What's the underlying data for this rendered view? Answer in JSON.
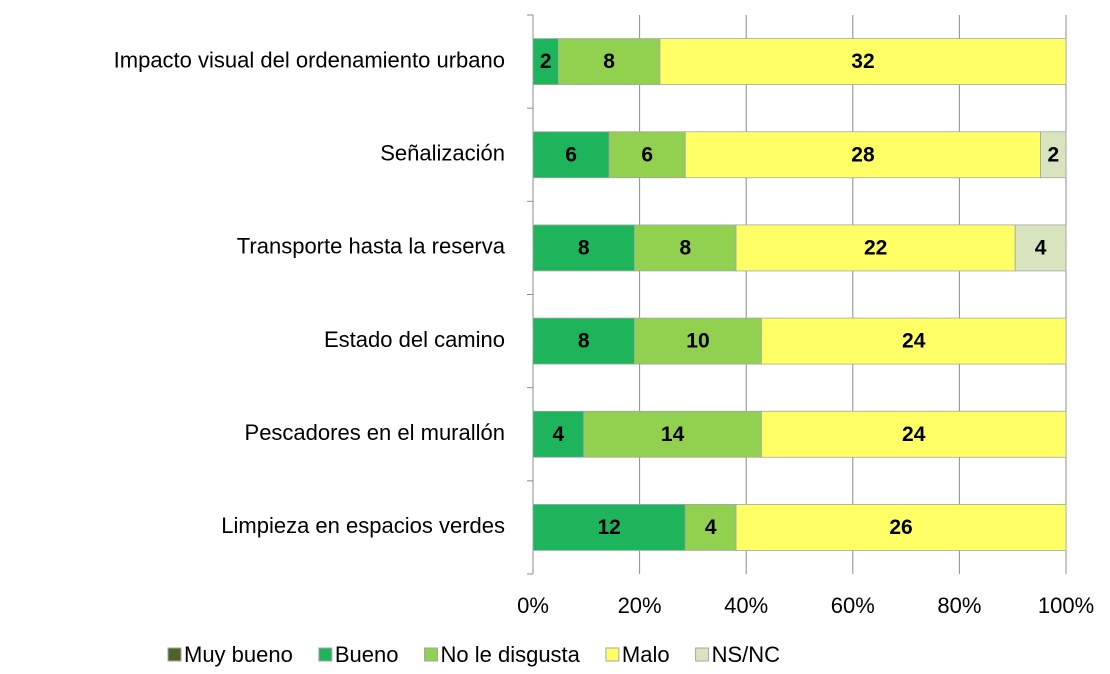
{
  "chart_data": {
    "type": "stacked_bar_100",
    "categories": [
      "Impacto visual del ordenamiento urbano",
      "Señalización",
      "Transporte hasta la reserva",
      "Estado del camino",
      "Pescadores en el murallón",
      "Limpieza en espacios verdes"
    ],
    "series": [
      {
        "name": "Muy bueno",
        "color": "#4f6228",
        "values": [
          0,
          0,
          0,
          0,
          0,
          0
        ]
      },
      {
        "name": "Bueno",
        "color": "#1eb45c",
        "values": [
          2,
          6,
          8,
          8,
          4,
          12
        ]
      },
      {
        "name": "No le disgusta",
        "color": "#92d050",
        "values": [
          8,
          6,
          8,
          10,
          14,
          4
        ]
      },
      {
        "name": "Malo",
        "color": "#ffff66",
        "values": [
          32,
          28,
          22,
          24,
          24,
          26
        ]
      },
      {
        "name": "NS/NC",
        "color": "#d7e4bd",
        "values": [
          0,
          2,
          4,
          0,
          0,
          0
        ]
      }
    ],
    "xlim": [
      0,
      100
    ],
    "xticks": [
      {
        "value": 0,
        "label": "0%"
      },
      {
        "value": 20,
        "label": "20%"
      },
      {
        "value": 40,
        "label": "40%"
      },
      {
        "value": 60,
        "label": "60%"
      },
      {
        "value": 80,
        "label": "80%"
      },
      {
        "value": 100,
        "label": "100%"
      }
    ],
    "grid": true,
    "legend": "bottom"
  }
}
